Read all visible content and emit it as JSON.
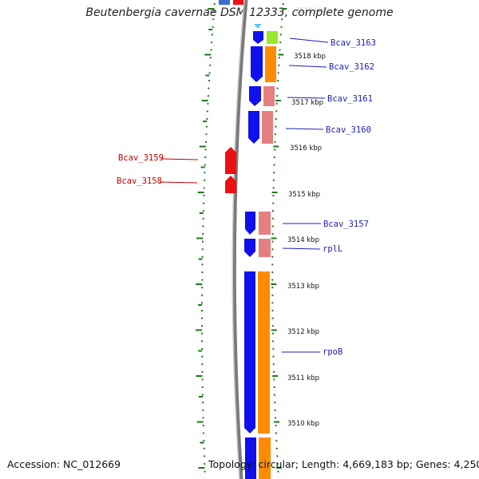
{
  "title": "Beutenbergia cavernae DSM 12333, complete genome",
  "accession": "Accession: NC_012669",
  "topology": "Topology: circular; Length: 4,669,183 bp; Genes: 4,250",
  "colors": {
    "backbone": "#7a7a7a",
    "plus_strand_cds": "#1010ee",
    "plus_strand_feature": "#ff8c00",
    "minus_strand_cds": "#ee1010",
    "pseudo": "#e58080",
    "highlight": "#99e82a",
    "label_forward": "#1d1db8",
    "label_reverse": "#c80000",
    "dots": "#1a7a1a"
  },
  "kbp_ticks": [
    "3519 kbp",
    "3518 kbp",
    "3517 kbp",
    "3516 kbp",
    "3515 kbp",
    "3514 kbp",
    "3513 kbp",
    "3512 kbp",
    "3511 kbp",
    "3510 kbp"
  ],
  "forward_genes": [
    "Bcav_3163",
    "Bcav_3162",
    "Bcav_3161",
    "Bcav_3160",
    "Bcav_3157",
    "rplL",
    "rpoB"
  ],
  "reverse_genes": [
    "Bcav_3159",
    "Bcav_3158"
  ]
}
